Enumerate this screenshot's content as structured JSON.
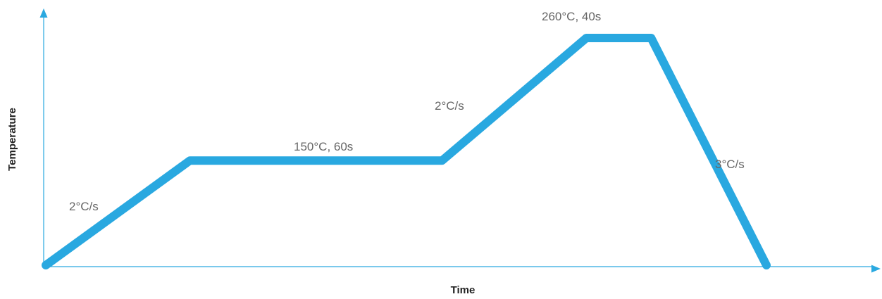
{
  "chart_data": {
    "type": "line",
    "title": "",
    "xlabel": "Time",
    "ylabel": "Temperature",
    "grid": false,
    "legend": "none",
    "colors": {
      "line": "#29a8e0",
      "axis": "#2aa9e0",
      "annotation_text": "#666666",
      "axis_label_text": "#222222"
    },
    "series": [
      {
        "x": [
          0,
          2,
          5.5,
          7.5,
          8.4,
          10
        ],
        "y": [
          0,
          1.46,
          1.46,
          3.17,
          3.17,
          0
        ]
      }
    ],
    "annotations": [
      {
        "id": "ramp1",
        "text": "2°C/s"
      },
      {
        "id": "soak",
        "text": "150°C, 60s"
      },
      {
        "id": "ramp2",
        "text": "2°C/s"
      },
      {
        "id": "peak",
        "text": "260°C, 40s"
      },
      {
        "id": "cool",
        "text": "3°C/s"
      }
    ]
  }
}
